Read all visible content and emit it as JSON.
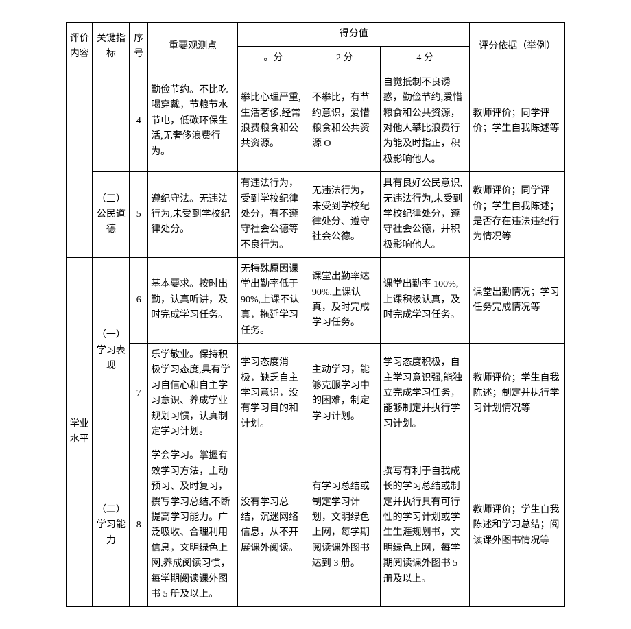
{
  "headers": {
    "eval_content": "评价内容",
    "key_indicator": "关键指标",
    "seq": "序号",
    "observation": "重要观测点",
    "score_group": "得分值",
    "score0": "。分",
    "score2": "2 分",
    "score4": "4 分",
    "basis": "评分依据（举例）"
  },
  "rows": [
    {
      "seq": "4",
      "observation": "勤俭节约。不比吃喝穿戴，节粮节水节电，低碳环保生活,无奢侈浪费行为。",
      "score0": "攀比心理严重,生活奢侈,经常浪费粮食和公共资源。",
      "score2": "不攀比，有节约意识，爱惜粮食和公共资源 O",
      "score4": "自觉抵制不良诱惑，勤俭节约,爱惜粮食和公共资源，对他人攀比浪费行为能及时指正，积极影响他人。",
      "basis": "教师评价；同学评价；学生自我陈述等"
    },
    {
      "key_indicator": "（三）公民道德",
      "seq": "5",
      "observation": "遵纪守法。无违法行为,未受到学校纪律处分。",
      "score0": "有违法行为，受到学校纪律处分，有不遵守社会公德等不良行为。",
      "score2": "无违法行为，未受到学校纪律处分、遵守社会公德。",
      "score4": "具有良好公民意识,无违法行为,未受到学校纪律处分，遵守社会公德，并积极影响他人。",
      "basis": "教师评价；同学评价；学生自我陈述；是否存在违法违纪行为情况等"
    },
    {
      "eval_content": "学业水平",
      "key_indicator": "（一）学习表现",
      "seq": "6",
      "observation": "基本要求。按时出勤，认真听讲，及时完成学习任务。",
      "score0": "无特殊原因课堂出勤率低于 90%,上课不认真，拖延学习任务。",
      "score2": "课堂出勤率达 90%,上课认真，及时完成学习任务。",
      "score4": "课堂出勤率 100%,上课积极认真，及时完成学习任务。",
      "basis": "课堂出勤情况；学习任务完成情况等"
    },
    {
      "seq": "7",
      "observation": "乐学敬业。保持积极学习态度,具有学习自信心和自主学习意识、养成学业规划习惯，认真制定学习计划。",
      "score0": "学习态度消极，缺乏自主学习意识，没有学习目的和计划。",
      "score2": "主动学习，能够克服学习中的困难，制定学习计划。",
      "score4": "学习态度积极，自主学习意识强,能独立完成学习任务，能够制定并执行学习计划。",
      "basis": "教师评价；学生自我陈述；制定并执行学习计划情况等"
    },
    {
      "key_indicator": "（二）学习能力",
      "seq": "8",
      "observation": "学会学习。掌握有效学习方法，主动预习、及时复习，撰写学习总结,不断提高学习能力。广泛吸收、合理利用信息，文明绿色上网,养成阅读习惯，每学期阅读课外图书 5 册及以上。",
      "score0": "没有学习总结，沉迷网络信息，从不开展课外阅读。",
      "score2": "有学习总结或制定学习计划，文明绿色上网，每学期阅读课外图书达到 3 册。",
      "score4": "撰写有利于自我成长的学习总结或制定并执行具有可行性的学习计划或学生生涯规划书，文明绿色上网，每学期阅读课外图书 5 册及以上。",
      "basis": "教师评价；学生自我陈述和学习总结；阅读课外图书情况等"
    }
  ]
}
